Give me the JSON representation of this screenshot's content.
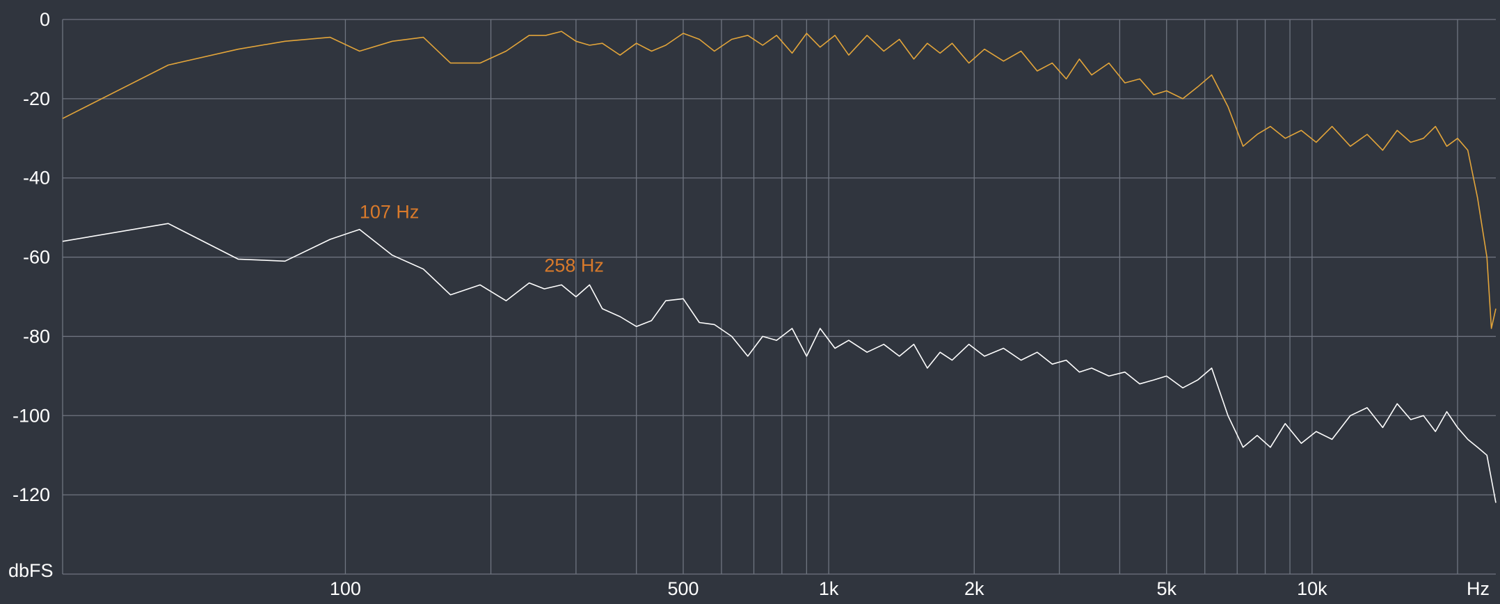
{
  "chart_data": {
    "type": "line",
    "title": "",
    "xlabel": "Hz",
    "ylabel": "dbFS",
    "x_scale": "log",
    "xlim": [
      26,
      24000
    ],
    "ylim": [
      -140,
      0
    ],
    "grid": true,
    "colors": {
      "background": "#30353e",
      "grid": "#6f7580",
      "text": "#ffffff",
      "peak_label": "#d97a2b"
    },
    "y_ticks": [
      {
        "value": 0,
        "label": "0"
      },
      {
        "value": -20,
        "label": "-20"
      },
      {
        "value": -40,
        "label": "-40"
      },
      {
        "value": -60,
        "label": "-60"
      },
      {
        "value": -80,
        "label": "-80"
      },
      {
        "value": -100,
        "label": "-100"
      },
      {
        "value": -120,
        "label": "-120"
      }
    ],
    "x_gridlines": [
      100,
      200,
      300,
      400,
      500,
      600,
      700,
      800,
      900,
      1000,
      2000,
      3000,
      4000,
      5000,
      6000,
      7000,
      8000,
      9000,
      10000,
      20000
    ],
    "x_ticks": [
      {
        "value": 100,
        "label": "100"
      },
      {
        "value": 500,
        "label": "500"
      },
      {
        "value": 1000,
        "label": "1k"
      },
      {
        "value": 2000,
        "label": "2k"
      },
      {
        "value": 5000,
        "label": "5k"
      },
      {
        "value": 10000,
        "label": "10k"
      }
    ],
    "peak_labels": [
      {
        "label": "107 Hz",
        "x": 107,
        "y": -53
      },
      {
        "label": "258 Hz",
        "x": 258,
        "y": -66.5
      }
    ],
    "series": [
      {
        "color": "#e3a53a",
        "x": [
          26,
          43,
          60,
          75,
          93,
          107,
          125,
          145,
          165,
          190,
          215,
          240,
          260,
          280,
          300,
          320,
          340,
          370,
          400,
          430,
          460,
          500,
          540,
          580,
          630,
          680,
          730,
          780,
          840,
          900,
          960,
          1030,
          1100,
          1200,
          1300,
          1400,
          1500,
          1600,
          1700,
          1800,
          1950,
          2100,
          2300,
          2500,
          2700,
          2900,
          3100,
          3300,
          3500,
          3800,
          4100,
          4400,
          4700,
          5000,
          5400,
          5800,
          6200,
          6700,
          7200,
          7700,
          8200,
          8800,
          9500,
          10200,
          11000,
          12000,
          13000,
          14000,
          15000,
          16000,
          17000,
          18000,
          19000,
          20000,
          21000,
          22000,
          23000,
          23500,
          24000
        ],
        "values": [
          -25,
          -11.5,
          -7.5,
          -5.5,
          -4.5,
          -8,
          -5.5,
          -4.5,
          -11,
          -11,
          -8,
          -4,
          -4,
          -3,
          -5.5,
          -6.5,
          -6,
          -9,
          -6,
          -8,
          -6.5,
          -3.5,
          -5,
          -8,
          -5,
          -4,
          -6.5,
          -4,
          -8.5,
          -3.5,
          -7,
          -4,
          -9,
          -4,
          -8,
          -5,
          -10,
          -6,
          -8.5,
          -6,
          -11,
          -7.5,
          -10.5,
          -8,
          -13,
          -11,
          -15,
          -10,
          -14,
          -11,
          -16,
          -15,
          -19,
          -18,
          -20,
          -17,
          -14,
          -22,
          -32,
          -29,
          -27,
          -30,
          -28,
          -31,
          -27,
          -32,
          -29,
          -33,
          -28,
          -31,
          -30,
          -27,
          -32,
          -30,
          -33,
          -45,
          -60,
          -78,
          -73
        ]
      },
      {
        "color": "#ffffff",
        "x": [
          26,
          43,
          60,
          75,
          93,
          107,
          125,
          145,
          165,
          190,
          215,
          240,
          258,
          280,
          300,
          320,
          340,
          370,
          400,
          430,
          460,
          500,
          540,
          580,
          630,
          680,
          730,
          780,
          840,
          900,
          960,
          1030,
          1100,
          1200,
          1300,
          1400,
          1500,
          1600,
          1700,
          1800,
          1950,
          2100,
          2300,
          2500,
          2700,
          2900,
          3100,
          3300,
          3500,
          3800,
          4100,
          4400,
          4700,
          5000,
          5400,
          5800,
          6200,
          6700,
          7200,
          7700,
          8200,
          8800,
          9500,
          10200,
          11000,
          12000,
          13000,
          14000,
          15000,
          16000,
          17000,
          18000,
          19000,
          20000,
          21000,
          22000,
          23000,
          23500,
          24000
        ],
        "values": [
          -56,
          -51.5,
          -60.5,
          -61,
          -55.5,
          -53,
          -59.5,
          -63,
          -69.5,
          -67,
          -71,
          -66.5,
          -68,
          -67,
          -70,
          -67,
          -73,
          -75,
          -77.5,
          -76,
          -71,
          -70.5,
          -76.5,
          -77,
          -80,
          -85,
          -80,
          -81,
          -78,
          -85,
          -78,
          -83,
          -81,
          -84,
          -82,
          -85,
          -82,
          -88,
          -84,
          -86,
          -82,
          -85,
          -83,
          -86,
          -84,
          -87,
          -86,
          -89,
          -88,
          -90,
          -89,
          -92,
          -91,
          -90,
          -93,
          -91,
          -88,
          -100,
          -108,
          -105,
          -108,
          -102,
          -107,
          -104,
          -106,
          -100,
          -98,
          -103,
          -97,
          -101,
          -100,
          -104,
          -99,
          -103,
          -106,
          -108,
          -110,
          -116,
          -122
        ]
      }
    ]
  }
}
